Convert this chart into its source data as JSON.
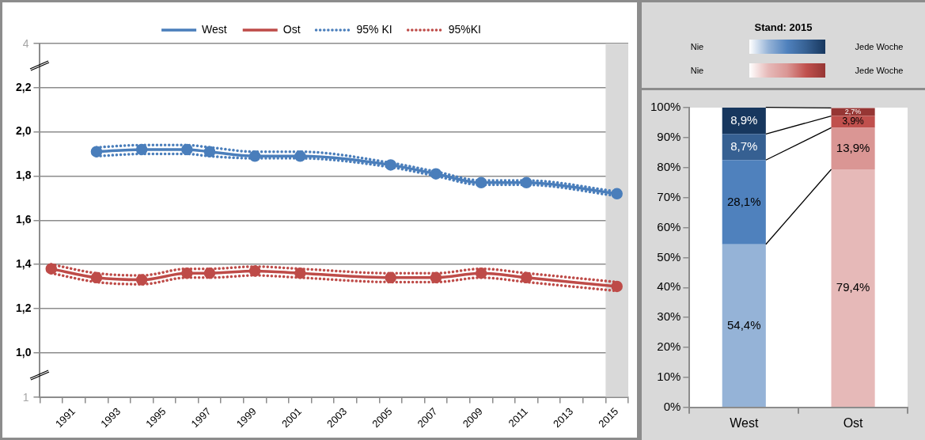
{
  "chart_data": [
    {
      "type": "line",
      "categories": [
        null,
        "1991",
        null,
        "1993",
        null,
        "1995",
        null,
        "1997",
        null,
        "1999",
        null,
        "2001",
        null,
        "2003",
        null,
        "2005",
        null,
        "2007",
        null,
        "2009",
        null,
        "2011",
        null,
        "2013",
        null,
        "2015"
      ],
      "series": [
        {
          "name": "West",
          "type": "line",
          "color": "#4a7ebb",
          "marker": "circle",
          "line_style": "solid",
          "values": [
            null,
            null,
            1.91,
            null,
            1.92,
            null,
            1.92,
            1.91,
            null,
            1.89,
            null,
            1.89,
            null,
            null,
            null,
            1.85,
            null,
            1.81,
            null,
            1.77,
            null,
            1.77,
            null,
            null,
            null,
            1.72
          ]
        },
        {
          "name": "Ost",
          "type": "line",
          "color": "#be4b48",
          "marker": "circle",
          "line_style": "solid",
          "values": [
            1.38,
            null,
            1.34,
            null,
            1.33,
            null,
            1.36,
            1.36,
            null,
            1.37,
            null,
            1.36,
            null,
            null,
            null,
            1.34,
            null,
            1.34,
            null,
            1.36,
            null,
            1.34,
            null,
            null,
            null,
            1.3
          ]
        },
        {
          "name": "95% KI",
          "type": "line",
          "color": "#4a7ebb",
          "marker": "none",
          "line_style": "dotted",
          "values": [
            null,
            null,
            1.93,
            null,
            1.94,
            null,
            1.94,
            1.93,
            null,
            1.91,
            null,
            1.91,
            null,
            null,
            null,
            1.86,
            null,
            1.82,
            null,
            1.78,
            null,
            1.78,
            null,
            null,
            null,
            1.73
          ]
        },
        {
          "type": "line",
          "color": "#4a7ebb",
          "marker": "none",
          "line_style": "dotted",
          "values": [
            null,
            null,
            1.89,
            null,
            1.9,
            null,
            1.9,
            1.89,
            null,
            1.88,
            null,
            1.88,
            null,
            null,
            null,
            1.84,
            null,
            1.8,
            null,
            1.76,
            null,
            1.76,
            null,
            null,
            null,
            1.71
          ]
        },
        {
          "name": "95%KI",
          "type": "line",
          "color": "#be4b48",
          "marker": "none",
          "line_style": "dotted",
          "values": [
            1.4,
            null,
            1.36,
            null,
            1.35,
            null,
            1.38,
            1.38,
            null,
            1.39,
            null,
            1.38,
            null,
            null,
            null,
            1.36,
            null,
            1.36,
            null,
            1.38,
            null,
            1.36,
            null,
            null,
            null,
            1.32
          ]
        },
        {
          "type": "line",
          "color": "#be4b48",
          "marker": "none",
          "line_style": "dotted",
          "values": [
            1.36,
            null,
            1.32,
            null,
            1.31,
            null,
            1.34,
            1.34,
            null,
            1.35,
            null,
            1.34,
            null,
            null,
            null,
            1.32,
            null,
            1.32,
            null,
            1.34,
            null,
            1.32,
            null,
            null,
            null,
            1.28
          ]
        }
      ],
      "ylim": [
        0.8,
        2.4
      ],
      "annotations": [
        "1",
        "4"
      ],
      "yticks": [
        {
          "value": 0.8,
          "label": null
        },
        {
          "value": 1.0,
          "label": "1,0"
        },
        {
          "value": 1.2,
          "label": "1,2"
        },
        {
          "value": 1.4,
          "label": "1,4"
        },
        {
          "value": 1.6,
          "label": "1,6"
        },
        {
          "value": 1.8,
          "label": "1,8"
        },
        {
          "value": 2.0,
          "label": "2,0"
        },
        {
          "value": 2.2,
          "label": "2,2"
        },
        {
          "value": 2.4,
          "label": null
        }
      ],
      "bands": [
        {
          "axis": "x",
          "from": "2015",
          "to": "2015",
          "color": "#d9d9d9"
        }
      ],
      "grid": "y",
      "legend": "top"
    },
    {
      "type": "bar",
      "legend_title": "Stand: 2015",
      "annotations": [
        "Nie",
        "Jede Woche",
        "Nie",
        "Jede Woche"
      ],
      "categories": [
        "West",
        "Ost"
      ],
      "stacked": true,
      "series": [
        {
          "colors": [
            "#95b3d7",
            "#e6b9b8"
          ],
          "values": [
            54.4,
            79.4
          ],
          "value_labels": [
            "54,4%",
            "79,4%"
          ]
        },
        {
          "colors": [
            "#4f81bd",
            "#da9694"
          ],
          "values": [
            28.1,
            13.9
          ],
          "value_labels": [
            "28,1%",
            "13,9%"
          ]
        },
        {
          "colors": [
            "#366092",
            "#c0504d"
          ],
          "values": [
            8.7,
            3.9
          ],
          "value_labels": [
            "8,7%",
            "3,9%"
          ]
        },
        {
          "colors": [
            "#17375e",
            "#963634"
          ],
          "values": [
            8.9,
            2.7
          ],
          "value_labels": [
            "8,9%",
            "2,7%"
          ]
        }
      ],
      "ylim": [
        0,
        100
      ],
      "yticks": [
        {
          "value": 0,
          "label": "0%"
        },
        {
          "value": 10,
          "label": "10%"
        },
        {
          "value": 20,
          "label": "20%"
        },
        {
          "value": 30,
          "label": "30%"
        },
        {
          "value": 40,
          "label": "40%"
        },
        {
          "value": 50,
          "label": "50%"
        },
        {
          "value": 60,
          "label": "60%"
        },
        {
          "value": 70,
          "label": "70%"
        },
        {
          "value": 80,
          "label": "80%"
        },
        {
          "value": 90,
          "label": "90%"
        },
        {
          "value": 100,
          "label": "100%"
        }
      ]
    }
  ]
}
